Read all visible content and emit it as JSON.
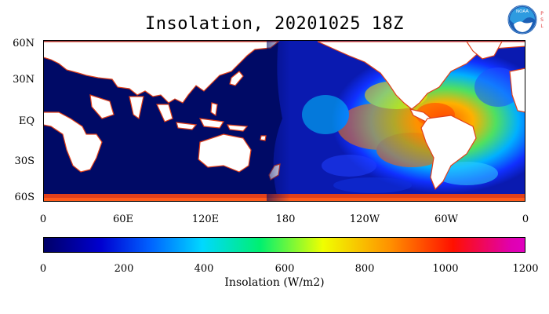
{
  "title": "Insolation, 20201025 18Z",
  "logo": {
    "text": "NOAA",
    "side_text": "PSL",
    "colors": {
      "blue": "#1b5fb5",
      "sky": "#2e9be0",
      "red": "#e03a3a"
    }
  },
  "map": {
    "projection": "cylindrical equidistant",
    "lat_labels": [
      "60N",
      "30N",
      "EQ",
      "30S",
      "60S"
    ],
    "lon_labels": [
      "0",
      "60E",
      "120E",
      "180",
      "120W",
      "60W",
      "0"
    ],
    "colors": {
      "land": "#ffffff",
      "night_ocean": "#000a66",
      "coast": "#e0401a"
    }
  },
  "colorbar": {
    "tick_labels": [
      "0",
      "200",
      "400",
      "600",
      "800",
      "1000",
      "1200"
    ],
    "range": [
      0,
      1200
    ],
    "label": "Insolation (W/m2)",
    "colors": [
      "#000066",
      "#0000ff",
      "#00c0ff",
      "#00ff80",
      "#ffff00",
      "#ff8000",
      "#ff0000",
      "#e000c0"
    ]
  }
}
